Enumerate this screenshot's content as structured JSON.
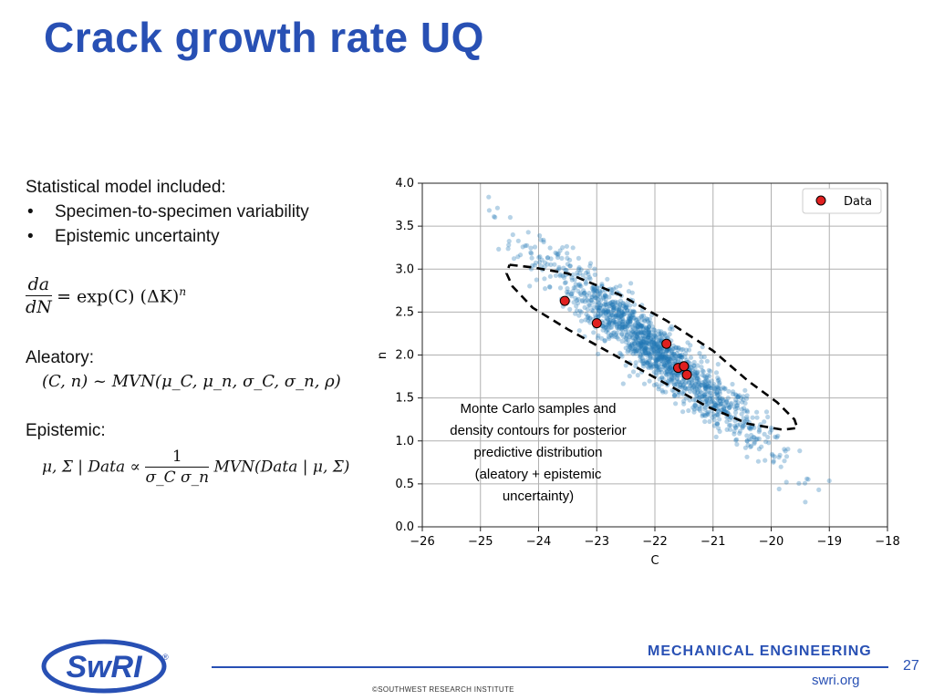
{
  "title": "Crack growth rate UQ",
  "left": {
    "intro": "Statistical model included:",
    "bullets": [
      "Specimen-to-specimen variability",
      "Epistemic uncertainty"
    ],
    "bullet_symbol": "•",
    "eq1": {
      "num": "da",
      "den": "dN",
      "rhs": "= exp(C) (ΔK)",
      "exp": "n"
    },
    "aleatory_label": "Aleatory:",
    "aleatory_eq": "(C, n) ~ MVN(μ_C, μ_n, σ_C, σ_n, ρ)",
    "epistemic_label": "Epistemic:",
    "epistemic_eq": {
      "lhs": "μ, Σ | Data ∝",
      "num": "1",
      "den": "σ_C σ_n",
      "rhs": "MVN(Data | μ, Σ)"
    }
  },
  "chart_data": {
    "type": "scatter",
    "xlabel": "C",
    "ylabel": "n",
    "xlim": [
      -26,
      -18
    ],
    "ylim": [
      0,
      4
    ],
    "x_ticks": [
      -26,
      -25,
      -24,
      -23,
      -22,
      -21,
      -20,
      -19,
      -18
    ],
    "y_ticks": [
      0.0,
      0.5,
      1.0,
      1.5,
      2.0,
      2.5,
      3.0,
      3.5,
      4.0
    ],
    "x_tick_labels": [
      "−26",
      "−25",
      "−24",
      "−23",
      "−22",
      "−21",
      "−20",
      "−19",
      "−18"
    ],
    "y_tick_labels": [
      "0.0",
      "0.5",
      "1.0",
      "1.5",
      "2.0",
      "2.5",
      "3.0",
      "3.5",
      "4.0"
    ],
    "grid": true,
    "legend_position": "top-right",
    "series": [
      {
        "name": "Data",
        "color": "#e02020",
        "points": [
          [
            -23.55,
            2.63
          ],
          [
            -23.0,
            2.37
          ],
          [
            -21.8,
            2.13
          ],
          [
            -21.6,
            1.85
          ],
          [
            -21.5,
            1.87
          ],
          [
            -21.45,
            1.77
          ]
        ]
      }
    ],
    "monte_carlo": {
      "color": "#1f77b4",
      "center": [
        -22.0,
        2.05
      ],
      "slope": -0.55,
      "spread_along_c": 0.95,
      "spread_perp": 0.17
    },
    "contour": {
      "style": "dashed",
      "color": "#000000",
      "points": [
        [
          -24.5,
          3.05
        ],
        [
          -24.1,
          3.02
        ],
        [
          -23.5,
          2.95
        ],
        [
          -22.6,
          2.7
        ],
        [
          -21.8,
          2.4
        ],
        [
          -21.0,
          2.05
        ],
        [
          -20.4,
          1.7
        ],
        [
          -19.9,
          1.45
        ],
        [
          -19.6,
          1.25
        ],
        [
          -19.55,
          1.15
        ],
        [
          -19.8,
          1.13
        ],
        [
          -20.4,
          1.2
        ],
        [
          -21.1,
          1.4
        ],
        [
          -21.9,
          1.7
        ],
        [
          -22.7,
          2.0
        ],
        [
          -23.5,
          2.3
        ],
        [
          -24.1,
          2.55
        ],
        [
          -24.45,
          2.8
        ],
        [
          -24.55,
          2.95
        ],
        [
          -24.5,
          3.05
        ]
      ]
    },
    "annotation": [
      "Monte Carlo samples and",
      "density contours for posterior",
      "predictive distribution",
      "(aleatory + epistemic",
      "uncertainty)"
    ]
  },
  "footer": {
    "department": "MECHANICAL ENGINEERING",
    "url": "swri.org",
    "copyright": "©SOUTHWEST RESEARCH INSTITUTE",
    "page_number": "27",
    "logo_text": "SwRI",
    "logo_mark": "®"
  },
  "colors": {
    "title": "#2850b4",
    "footer": "#2850b4"
  }
}
